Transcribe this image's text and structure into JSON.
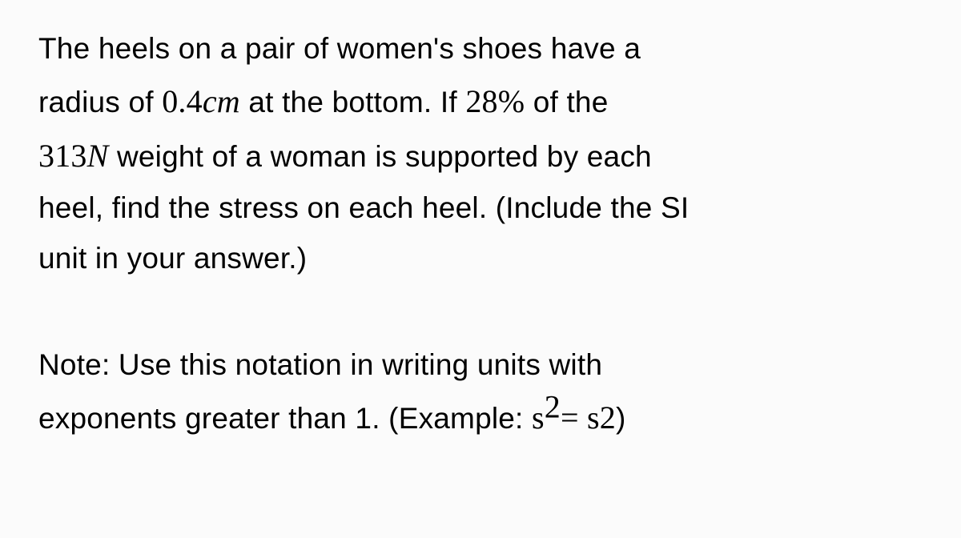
{
  "problem": {
    "text_parts": {
      "p1": "The heels on a pair of women's shoes have a",
      "p2": "radius of ",
      "radius_val": "0.4",
      "radius_unit": "cm",
      "p3": " at the bottom. If ",
      "percent_val": "28%",
      "p4": " of the",
      "weight_val": "313",
      "weight_unit": "N",
      "p5": " weight of a woman  is supported by each",
      "p6": "heel, find the stress on each heel. (Include the SI",
      "p7": "unit in your answer.)"
    }
  },
  "note": {
    "line1": "Note: Use this notation in writing units with",
    "line2_a": "exponents greater than 1. (Example: ",
    "example_lhs_base": "s",
    "example_lhs_exp": "2",
    "example_eq": "= ",
    "example_rhs": "s2",
    "line2_b": ")"
  },
  "styling": {
    "background_color": "#fbfbfb",
    "text_color": "#000000",
    "body_fontsize": 37,
    "math_fontsize": 40,
    "line_height": 1.7
  }
}
